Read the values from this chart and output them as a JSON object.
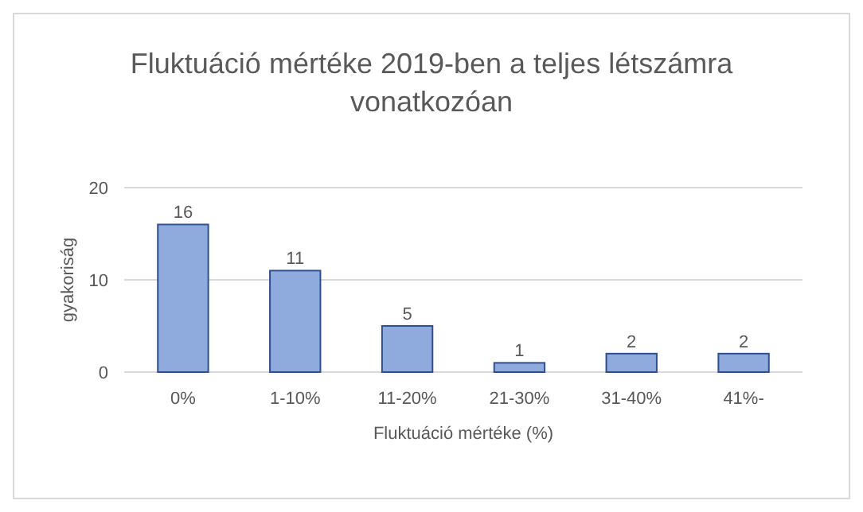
{
  "chart_data": {
    "type": "bar",
    "title": "Fluktuáció mértéke 2019-ben a teljes létszámra vonatkozóan",
    "xlabel": "Fluktuáció mértéke (%)",
    "ylabel": "gyakoriság",
    "categories": [
      "0%",
      "1-10%",
      "11-20%",
      "21-30%",
      "31-40%",
      "41%-"
    ],
    "values": [
      16,
      11,
      5,
      1,
      2,
      2
    ],
    "color": "#8faadc",
    "ylim": [
      0,
      20
    ],
    "yticks": [
      0,
      10,
      20
    ],
    "grid": true,
    "data_labels": true
  }
}
